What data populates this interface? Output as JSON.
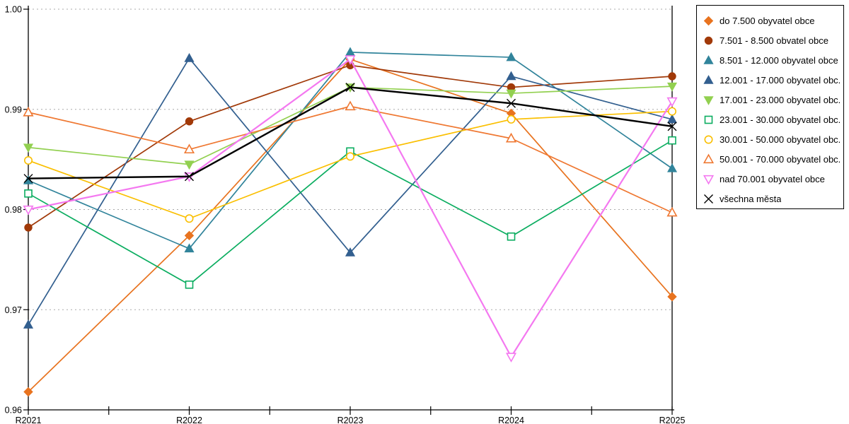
{
  "chart_data": {
    "type": "line",
    "title": "",
    "xlabel": "",
    "ylabel": "",
    "categories": [
      "R2021",
      "R2022",
      "R2023",
      "R2024",
      "R2025"
    ],
    "ylim": [
      0.96,
      1.0
    ],
    "yticks": [
      0.96,
      0.97,
      0.98,
      0.99,
      1.0
    ],
    "ytick_labels": [
      "0.96",
      "0.97",
      "0.98",
      "0.99",
      "1.00"
    ],
    "grid": "horizontal dashed gridlines at 0.97, 0.98, 0.99, 1.00",
    "legend_position": "right",
    "series": [
      {
        "name": "do 7.500 obyvatel obce",
        "legend_label": "do 7.500 obyvatel obce",
        "color": "#E8731F",
        "marker": "diamond",
        "fill": "solid",
        "line_width": 1.7,
        "values": [
          0.9618,
          0.9774,
          0.995,
          0.9896,
          0.9713
        ]
      },
      {
        "name": "7.501 - 8.500 obvatel obce",
        "legend_label": "7.501 - 8.500 obvatel obce",
        "color": "#A13908",
        "marker": "circle",
        "fill": "solid",
        "line_width": 1.7,
        "values": [
          0.9782,
          0.9888,
          0.9944,
          0.9922,
          0.9933
        ]
      },
      {
        "name": "8.501 - 12.000 obyvatel obce",
        "legend_label": "8.501 - 12.000 obyvatel obce",
        "color": "#31849B",
        "marker": "triangle-up",
        "fill": "solid",
        "line_width": 1.7,
        "values": [
          0.9829,
          0.9761,
          0.9957,
          0.9952,
          0.9841
        ]
      },
      {
        "name": "12.001 - 17.000 obyvatel obce",
        "legend_label": "12.001 - 17.000 obyvatel obc...",
        "color": "#325F8F",
        "marker": "triangle-up",
        "fill": "solid",
        "line_width": 1.7,
        "values": [
          0.9685,
          0.9951,
          0.9757,
          0.9933,
          0.989
        ]
      },
      {
        "name": "17.001 - 23.000 obyvatel obce",
        "legend_label": "17.001 - 23.000 obyvatel obc...",
        "color": "#92D050",
        "marker": "triangle-down",
        "fill": "solid",
        "line_width": 1.7,
        "values": [
          0.9862,
          0.9845,
          0.9922,
          0.9916,
          0.9923
        ]
      },
      {
        "name": "23.001 - 30.000 obyvatel obce",
        "legend_label": "23.001 - 30.000 obyvatel obc...",
        "color": "#0BAD60",
        "marker": "square",
        "fill": "open",
        "line_width": 1.7,
        "values": [
          0.9816,
          0.9725,
          0.9858,
          0.9773,
          0.9869
        ]
      },
      {
        "name": "30.001 - 50.000 obyvatel obce",
        "legend_label": "30.001 - 50.000 obyvatel obc...",
        "color": "#FABF00",
        "marker": "circle",
        "fill": "open",
        "line_width": 1.7,
        "values": [
          0.9849,
          0.9791,
          0.9853,
          0.989,
          0.9898
        ]
      },
      {
        "name": "50.001 - 70.000 obyvatel obce",
        "legend_label": "50.001 - 70.000 obyvatel obc...",
        "color": "#EF7832",
        "marker": "triangle-up",
        "fill": "open",
        "line_width": 1.7,
        "values": [
          0.9897,
          0.986,
          0.9903,
          0.9871,
          0.9797
        ]
      },
      {
        "name": "nad 70.001 obyvatel obce",
        "legend_label": "nad 70.001 obyvatel obce",
        "color": "#F478F0",
        "marker": "triangle-down",
        "fill": "open",
        "line_width": 2.2,
        "values": [
          0.98,
          0.9833,
          0.995,
          0.9653,
          0.9908
        ]
      },
      {
        "name": "všechna města",
        "legend_label": "všechna města",
        "color": "#000000",
        "marker": "x",
        "fill": "line",
        "line_width": 2.4,
        "values": [
          0.9831,
          0.9833,
          0.9922,
          0.9906,
          0.9883
        ]
      }
    ]
  },
  "colors": {
    "axis": "#000000",
    "gridline": "#AAAAAA",
    "background": "#FFFFFF"
  }
}
